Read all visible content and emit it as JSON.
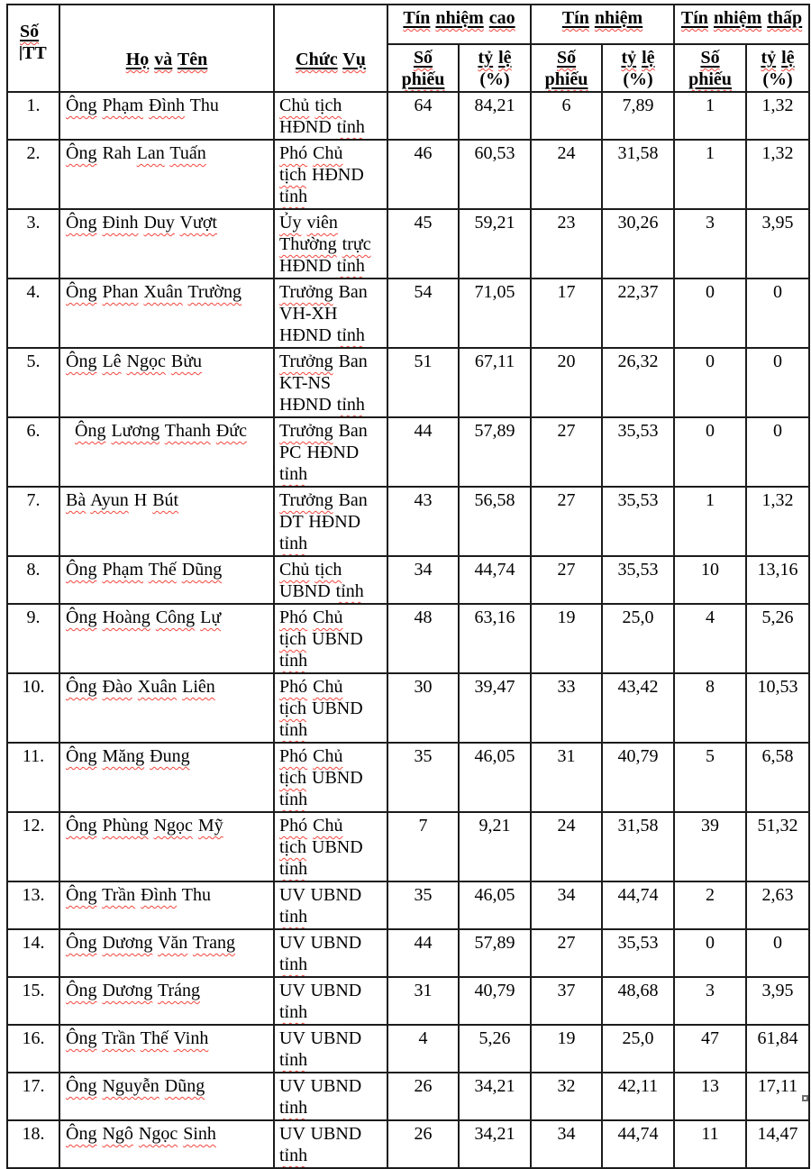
{
  "colors": {
    "text": "#000000",
    "border": "#1c1c1c",
    "spellcheck_squiggle": "#f4473e",
    "background": "#ffffff"
  },
  "table": {
    "header": {
      "stt_line1": "Số",
      "stt_line2": "TT",
      "name": "Họ và Tên",
      "position": "Chức Vụ",
      "groups": [
        {
          "label": "Tín nhiệm cao"
        },
        {
          "label": "Tín nhiệm"
        },
        {
          "label": "Tín nhiệm thấp"
        }
      ],
      "sub_votes": "Số phiếu",
      "sub_rate": "tỷ lệ (%)"
    },
    "rows": [
      {
        "stt": "1.",
        "name": "Ông Phạm Đình Thu",
        "position": "Chủ tịch HĐND tỉnh",
        "tnc_votes": "64",
        "tnc_rate": "84,21",
        "tn_votes": "6",
        "tn_rate": "7,89",
        "tnt_votes": "1",
        "tnt_rate": "1,32"
      },
      {
        "stt": "2.",
        "name": "Ông Rah Lan Tuấn",
        "position": "Phó Chủ tịch HĐND tỉnh",
        "tnc_votes": "46",
        "tnc_rate": "60,53",
        "tn_votes": "24",
        "tn_rate": "31,58",
        "tnt_votes": "1",
        "tnt_rate": "1,32"
      },
      {
        "stt": "3.",
        "name": "Ông Đinh Duy Vượt",
        "position": "Ủy viên Thường trực HĐND tỉnh",
        "tnc_votes": "45",
        "tnc_rate": "59,21",
        "tn_votes": "23",
        "tn_rate": "30,26",
        "tnt_votes": "3",
        "tnt_rate": "3,95"
      },
      {
        "stt": "4.",
        "name": "Ông Phan Xuân Trường",
        "position": "Trưởng Ban VH-XH HĐND tỉnh",
        "tnc_votes": "54",
        "tnc_rate": "71,05",
        "tn_votes": "17",
        "tn_rate": "22,37",
        "tnt_votes": "0",
        "tnt_rate": "0"
      },
      {
        "stt": "5.",
        "name": "Ông Lê Ngọc Bửu",
        "position": "Trưởng Ban KT-NS HĐND tỉnh",
        "tnc_votes": "51",
        "tnc_rate": "67,11",
        "tn_votes": "20",
        "tn_rate": "26,32",
        "tnt_votes": "0",
        "tnt_rate": "0"
      },
      {
        "stt": "6.",
        "name": "Ông Lương Thanh Đức",
        "position": "Trưởng Ban PC HĐND tỉnh",
        "indent": true,
        "tnc_votes": "44",
        "tnc_rate": "57,89",
        "tn_votes": "27",
        "tn_rate": "35,53",
        "tnt_votes": "0",
        "tnt_rate": "0"
      },
      {
        "stt": "7.",
        "name": "Bà Ayun H Bút",
        "position": "Trưởng Ban DT HĐND tỉnh",
        "tnc_votes": "43",
        "tnc_rate": "56,58",
        "tn_votes": "27",
        "tn_rate": "35,53",
        "tnt_votes": "1",
        "tnt_rate": "1,32"
      },
      {
        "stt": "8.",
        "name": "Ông Phạm Thế Dũng",
        "position": "Chủ tịch UBND tỉnh",
        "tnc_votes": "34",
        "tnc_rate": "44,74",
        "tn_votes": "27",
        "tn_rate": "35,53",
        "tnt_votes": "10",
        "tnt_rate": "13,16"
      },
      {
        "stt": "9.",
        "name": "Ông Hoàng Công Lự",
        "position": "Phó Chủ tịch UBND tỉnh",
        "tnc_votes": "48",
        "tnc_rate": "63,16",
        "tn_votes": "19",
        "tn_rate": "25,0",
        "tnt_votes": "4",
        "tnt_rate": "5,26"
      },
      {
        "stt": "10.",
        "name": "Ông Đào Xuân Liên",
        "position": "Phó Chủ tịch UBND tỉnh",
        "tnc_votes": "30",
        "tnc_rate": "39,47",
        "tn_votes": "33",
        "tn_rate": "43,42",
        "tnt_votes": "8",
        "tnt_rate": "10,53"
      },
      {
        "stt": "11.",
        "name": "Ông Măng Đung",
        "position": "Phó Chủ tịch UBND tỉnh",
        "tnc_votes": "35",
        "tnc_rate": "46,05",
        "tn_votes": "31",
        "tn_rate": "40,79",
        "tnt_votes": "5",
        "tnt_rate": "6,58"
      },
      {
        "stt": "12.",
        "name": "Ông Phùng Ngọc Mỹ",
        "position": "Phó Chủ tịch UBND tỉnh",
        "tnc_votes": "7",
        "tnc_rate": "9,21",
        "tn_votes": "24",
        "tn_rate": "31,58",
        "tnt_votes": "39",
        "tnt_rate": "51,32"
      },
      {
        "stt": "13.",
        "name": "Ông Trần Đình Thu",
        "position": "UV UBND tỉnh",
        "tnc_votes": "35",
        "tnc_rate": "46,05",
        "tn_votes": "34",
        "tn_rate": "44,74",
        "tnt_votes": "2",
        "tnt_rate": "2,63"
      },
      {
        "stt": "14.",
        "name": "Ông Dương Văn Trang",
        "position": "UV UBND tỉnh",
        "tnc_votes": "44",
        "tnc_rate": "57,89",
        "tn_votes": "27",
        "tn_rate": "35,53",
        "tnt_votes": "0",
        "tnt_rate": "0"
      },
      {
        "stt": "15.",
        "name": "Ông Dương Tráng",
        "position": "UV UBND tỉnh",
        "tnc_votes": "31",
        "tnc_rate": "40,79",
        "tn_votes": "37",
        "tn_rate": "48,68",
        "tnt_votes": "3",
        "tnt_rate": "3,95"
      },
      {
        "stt": "16.",
        "name": "Ông Trần Thế Vinh",
        "position": "UV UBND tỉnh",
        "tnc_votes": "4",
        "tnc_rate": "5,26",
        "tn_votes": "19",
        "tn_rate": "25,0",
        "tnt_votes": "47",
        "tnt_rate": "61,84"
      },
      {
        "stt": "17.",
        "name": "Ông Nguyễn Dũng",
        "position": "UV UBND tỉnh",
        "tnc_votes": "26",
        "tnc_rate": "34,21",
        "tn_votes": "32",
        "tn_rate": "42,11",
        "tnt_votes": "13",
        "tnt_rate": "17,11"
      },
      {
        "stt": "18.",
        "name": "Ông Ngô Ngọc Sinh",
        "position": "UV UBND tỉnh",
        "tnc_votes": "26",
        "tnc_rate": "34,21",
        "tn_votes": "34",
        "tn_rate": "44,74",
        "tnt_votes": "11",
        "tnt_rate": "14,47"
      }
    ]
  }
}
